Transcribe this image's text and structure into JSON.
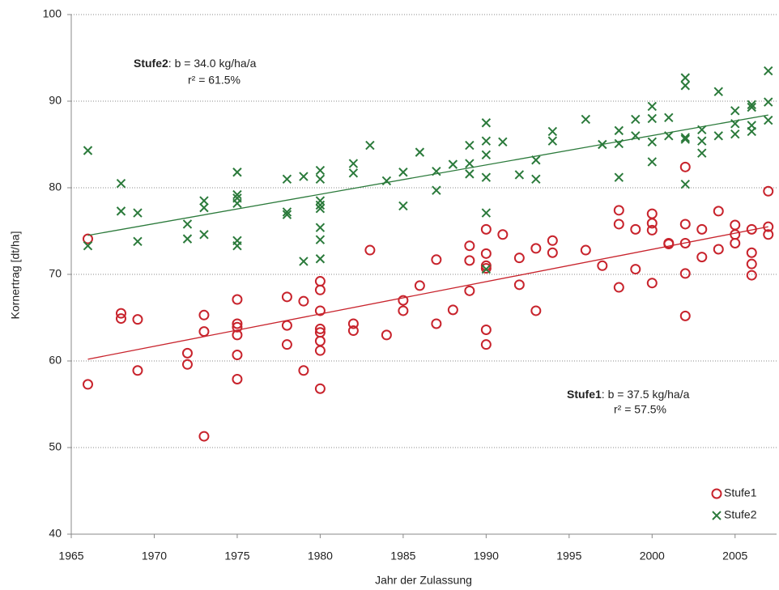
{
  "chart_data": {
    "type": "scatter",
    "x_label": "Jahr der Zulassung",
    "y_label": "Kornertrag [dt/ha]",
    "xlim": [
      1965,
      2007.5
    ],
    "ylim": [
      40,
      100
    ],
    "xticks": [
      1965,
      1970,
      1975,
      1980,
      1985,
      1990,
      1995,
      2000,
      2005
    ],
    "yticks": [
      40,
      50,
      60,
      70,
      80,
      90,
      100
    ],
    "grid": true,
    "legend": "bottom-right",
    "series": [
      {
        "name": "Stufe1",
        "color": "#c8232c",
        "marker": "circle",
        "x": [
          1966,
          1966,
          1968,
          1968,
          1969,
          1969,
          1972,
          1972,
          1973,
          1973,
          1973,
          1975,
          1975,
          1975,
          1975,
          1975,
          1975,
          1978,
          1978,
          1978,
          1979,
          1979,
          1980,
          1980,
          1980,
          1980,
          1980,
          1980,
          1980,
          1980,
          1982,
          1982,
          1983,
          1984,
          1985,
          1985,
          1986,
          1987,
          1987,
          1988,
          1989,
          1989,
          1989,
          1990,
          1990,
          1990,
          1990,
          1990,
          1990,
          1991,
          1992,
          1992,
          1993,
          1993,
          1994,
          1994,
          1996,
          1997,
          1998,
          1998,
          1998,
          1999,
          1999,
          2000,
          2000,
          2000,
          2000,
          2001,
          2001,
          2002,
          2002,
          2002,
          2002,
          2002,
          2003,
          2003,
          2004,
          2004,
          2005,
          2005,
          2005,
          2006,
          2006,
          2006,
          2006,
          2007,
          2007,
          2007
        ],
        "values": [
          74.1,
          57.3,
          65.5,
          64.9,
          64.8,
          58.9,
          60.9,
          59.6,
          65.3,
          63.4,
          51.3,
          67.1,
          64.3,
          63.9,
          63.0,
          60.7,
          57.9,
          67.4,
          64.1,
          61.9,
          66.9,
          58.9,
          69.2,
          68.2,
          65.8,
          63.7,
          63.3,
          62.3,
          61.2,
          56.8,
          64.3,
          63.5,
          72.8,
          63.0,
          67.0,
          65.8,
          68.7,
          71.7,
          64.3,
          65.9,
          73.3,
          71.6,
          68.1,
          75.2,
          72.4,
          71.0,
          70.7,
          63.6,
          61.9,
          74.6,
          71.9,
          68.8,
          73.0,
          65.8,
          73.9,
          72.5,
          72.8,
          71.0,
          77.4,
          75.8,
          68.5,
          75.2,
          70.6,
          77.0,
          75.9,
          75.1,
          69.0,
          73.6,
          73.5,
          82.4,
          75.8,
          73.6,
          70.1,
          65.2,
          75.2,
          72.0,
          77.3,
          72.9,
          75.7,
          74.6,
          73.6,
          75.2,
          72.5,
          71.2,
          69.9,
          79.6,
          75.5,
          74.6
        ],
        "trend": {
          "x": [
            1966,
            2007
          ],
          "values": [
            60.2,
            75.5
          ]
        },
        "annotation": {
          "bold": "Stufe1",
          "text": ": b = 37.5 kg/ha/a",
          "line2": "r² = 57.5%"
        }
      },
      {
        "name": "Stufe2",
        "color": "#2b7a3b",
        "marker": "x",
        "x": [
          1966,
          1966,
          1968,
          1968,
          1969,
          1969,
          1972,
          1972,
          1973,
          1973,
          1973,
          1975,
          1975,
          1975,
          1975,
          1975,
          1975,
          1978,
          1978,
          1978,
          1979,
          1979,
          1980,
          1980,
          1980,
          1980,
          1980,
          1980,
          1980,
          1980,
          1982,
          1982,
          1983,
          1984,
          1985,
          1985,
          1986,
          1987,
          1987,
          1988,
          1989,
          1989,
          1989,
          1990,
          1990,
          1990,
          1990,
          1990,
          1990,
          1991,
          1992,
          1993,
          1993,
          1994,
          1994,
          1996,
          1997,
          1998,
          1998,
          1998,
          1999,
          1999,
          2000,
          2000,
          2000,
          2000,
          2001,
          2001,
          2002,
          2002,
          2002,
          2002,
          2002,
          2003,
          2003,
          2003,
          2004,
          2004,
          2005,
          2005,
          2005,
          2006,
          2006,
          2006,
          2006,
          2007,
          2007,
          2007
        ],
        "values": [
          84.3,
          73.3,
          80.5,
          77.3,
          77.1,
          73.8,
          75.8,
          74.1,
          78.5,
          77.7,
          74.6,
          81.8,
          79.2,
          78.8,
          78.2,
          73.9,
          73.3,
          81.0,
          77.2,
          76.9,
          81.3,
          71.5,
          82.0,
          81.0,
          78.5,
          78.0,
          77.6,
          75.4,
          74.0,
          71.8,
          82.8,
          81.7,
          84.9,
          80.8,
          81.8,
          77.9,
          84.1,
          81.9,
          79.7,
          82.7,
          84.9,
          82.8,
          81.6,
          87.5,
          85.4,
          83.8,
          81.2,
          77.1,
          70.6,
          85.3,
          81.5,
          83.2,
          81.0,
          86.5,
          85.4,
          87.9,
          85.0,
          86.6,
          85.1,
          81.2,
          87.9,
          86.0,
          89.4,
          88.0,
          85.3,
          83.0,
          88.1,
          86.0,
          92.7,
          91.8,
          85.8,
          85.6,
          80.4,
          86.7,
          85.4,
          84.0,
          91.1,
          86.0,
          88.9,
          87.4,
          86.2,
          89.6,
          89.3,
          87.2,
          86.5,
          93.5,
          89.9,
          87.8
        ],
        "trend": {
          "x": [
            1966,
            2007
          ],
          "values": [
            74.5,
            88.4
          ]
        },
        "annotation": {
          "bold": "Stufe2",
          "text": ": b = 34.0 kg/ha/a",
          "line2": "r² = 61.5%"
        }
      }
    ]
  }
}
